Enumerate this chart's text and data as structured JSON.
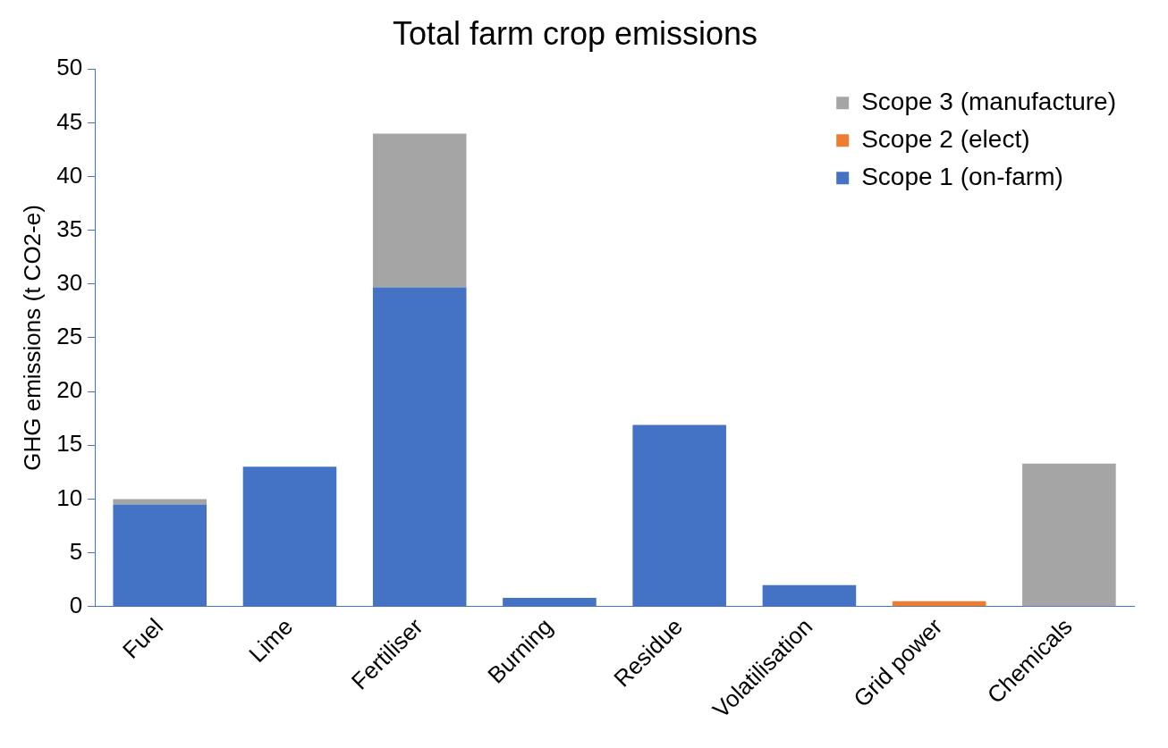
{
  "chart_data": {
    "type": "bar",
    "title": "Total farm crop emissions",
    "ylabel": "GHG emissions (t CO2-e)",
    "stacked": true,
    "categories": [
      "Fuel",
      "Lime",
      "Fertiliser",
      "Burning",
      "Residue",
      "Volatilisation",
      "Grid power",
      "Chemicals"
    ],
    "series": [
      {
        "name": "Scope 1 (on-farm)",
        "color": "#4472c4",
        "values": [
          9.5,
          13,
          29.7,
          0.8,
          16.9,
          2,
          0,
          0
        ]
      },
      {
        "name": "Scope 2 (elect)",
        "color": "#ed7d31",
        "values": [
          0,
          0,
          0,
          0,
          0,
          0,
          0.5,
          0
        ]
      },
      {
        "name": "Scope 3 (manufacture)",
        "color": "#a5a5a5",
        "values": [
          0.5,
          0,
          14.3,
          0,
          0,
          0,
          0,
          13.3
        ]
      }
    ],
    "ylim": [
      0,
      50
    ],
    "yticks": [
      0,
      5,
      10,
      15,
      20,
      25,
      30,
      35,
      40,
      45,
      50
    ],
    "grid": false,
    "legend": "top right"
  }
}
